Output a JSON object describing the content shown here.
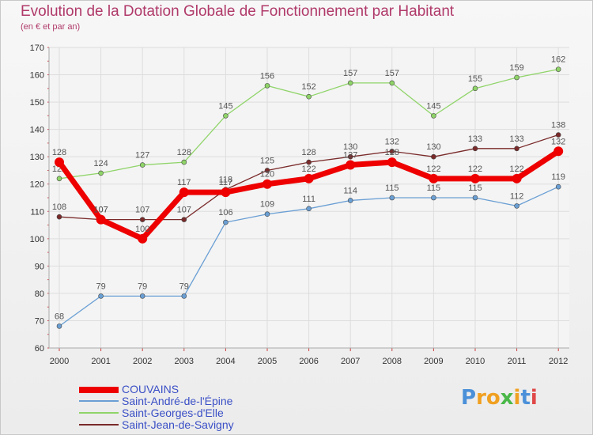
{
  "chart_data": {
    "type": "line",
    "title": "Evolution de la Dotation Globale de Fonctionnement par Habitant",
    "subtitle": "(en € et par an)",
    "xlabel": "",
    "ylabel": "",
    "ylim": [
      60,
      170
    ],
    "yticks": [
      60,
      70,
      80,
      90,
      100,
      110,
      120,
      130,
      140,
      150,
      160,
      170
    ],
    "categories": [
      "2000",
      "2001",
      "2002",
      "2003",
      "2004",
      "2005",
      "2006",
      "2007",
      "2008",
      "2009",
      "2010",
      "2011",
      "2012"
    ],
    "grid": true,
    "series": [
      {
        "name": "Saint-André-de-l'Épine",
        "color": "#6a9fd4",
        "values": [
          68,
          79,
          79,
          79,
          106,
          109,
          111,
          114,
          115,
          115,
          115,
          112,
          119
        ]
      },
      {
        "name": "Saint-Georges-d'Elle",
        "color": "#8fd468",
        "values": [
          122,
          124,
          127,
          128,
          145,
          156,
          152,
          157,
          157,
          145,
          155,
          159,
          162
        ]
      },
      {
        "name": "Saint-Jean-de-Savigny",
        "color": "#7a2a2a",
        "values": [
          108,
          107,
          107,
          107,
          118,
          125,
          128,
          130,
          132,
          130,
          133,
          133,
          138
        ]
      },
      {
        "name": "COUVAINS",
        "color": "#ee0000",
        "values": [
          128,
          107,
          100,
          117,
          117,
          120,
          122,
          127,
          128,
          122,
          122,
          122,
          132
        ]
      }
    ],
    "legend": [
      "COUVAINS",
      "Saint-André-de-l'Épine",
      "Saint-Georges-d'Elle",
      "Saint-Jean-de-Savigny"
    ]
  },
  "logo": {
    "letters": [
      "P",
      "r",
      "o",
      "x",
      "i",
      "t",
      "i"
    ],
    "colors": [
      "#4a90d9",
      "#f0a020",
      "#f0a020",
      "#4ab848",
      "#f0a020",
      "#4a90d9",
      "#e04848"
    ]
  }
}
